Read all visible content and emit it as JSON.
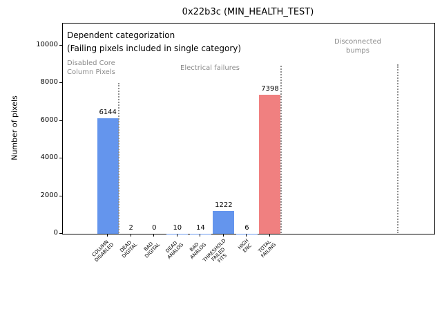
{
  "chart_data": {
    "type": "bar",
    "title": "0x22b3c (MIN_HEALTH_TEST)",
    "ylabel": "Number of pixels",
    "ylim": [
      0,
      10000
    ],
    "yticks": [
      0,
      2000,
      4000,
      6000,
      8000,
      10000
    ],
    "categories": [
      [
        "COLUMN",
        "DISABLED"
      ],
      [
        "DEAD",
        "DIGITAL"
      ],
      [
        "BAD",
        "DIGITAL"
      ],
      [
        "DEAD",
        "ANALOG"
      ],
      [
        "BAD",
        "ANALOG"
      ],
      [
        "THRESHOLD",
        "FAILED",
        "FITS"
      ],
      [
        "HIGH",
        "ENC"
      ],
      [
        "TOTAL",
        "FAILING"
      ]
    ],
    "values": [
      6144,
      2,
      0,
      10,
      14,
      1222,
      6,
      7398
    ],
    "bar_labels": [
      "6144",
      "2",
      "0",
      "10",
      "14",
      "1222",
      "6",
      "7398"
    ],
    "bar_colors": [
      "#6495ed",
      "#6495ed",
      "#6495ed",
      "#6495ed",
      "#6495ed",
      "#6495ed",
      "#6495ed",
      "#f08080"
    ],
    "grid": false,
    "legend": null,
    "annotations": {
      "note_line1": "Dependent categorization",
      "note_line2": "(Failing pixels included in single category)",
      "region_disabled": [
        "Disabled Core",
        "Column Pixels"
      ],
      "region_electrical": "Electrical failures",
      "region_disconnected": [
        "Disconnected",
        "bumps"
      ]
    },
    "colors": {
      "bar_blue": "#6495ed",
      "bar_red": "#f08080",
      "annotation_gray": "#8a8a8a",
      "separator_gray": "#909090"
    }
  }
}
